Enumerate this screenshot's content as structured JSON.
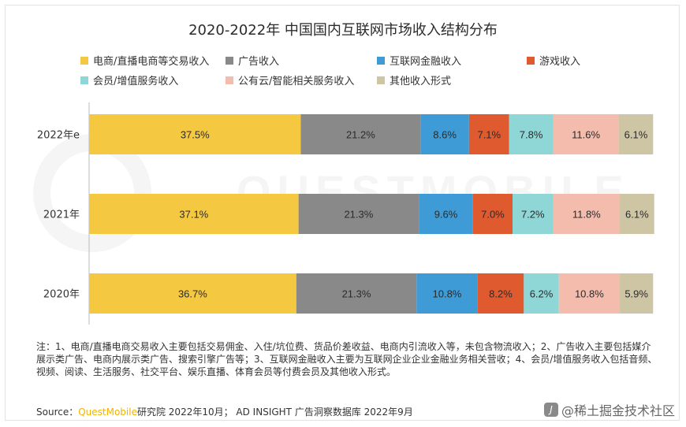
{
  "title": "2020-2022年 中国国内互联网市场收入结构分布",
  "watermark_bg": "QUESTMOBILE",
  "chart_data": {
    "type": "bar",
    "orientation": "horizontal",
    "stacked": true,
    "percent": true,
    "categories": [
      "2022年e",
      "2021年",
      "2020年"
    ],
    "series": [
      {
        "name": "电商/直播电商等交易收入",
        "color": "#F5C842",
        "values": [
          37.5,
          37.1,
          36.7
        ],
        "labels": [
          "37.5%",
          "37.1%",
          "36.7%"
        ]
      },
      {
        "name": "广告收入",
        "color": "#898989",
        "values": [
          21.2,
          21.3,
          21.3
        ],
        "labels": [
          "21.2%",
          "21.3%",
          "21.3%"
        ]
      },
      {
        "name": "互联网金融收入",
        "color": "#3E9BD6",
        "values": [
          8.6,
          9.6,
          10.8
        ],
        "labels": [
          "8.6%",
          "9.6%",
          "10.8%"
        ]
      },
      {
        "name": "游戏收入",
        "color": "#DF5A2E",
        "values": [
          7.1,
          7.0,
          8.2
        ],
        "labels": [
          "7.1%",
          "7.0%",
          "8.2%"
        ]
      },
      {
        "name": "会员/增值服务收入",
        "color": "#8FD6D7",
        "values": [
          7.8,
          7.2,
          6.2
        ],
        "labels": [
          "7.8%",
          "7.2%",
          "6.2%"
        ]
      },
      {
        "name": "公有云/智能相关服务收入",
        "color": "#F4BCAD",
        "values": [
          11.6,
          11.8,
          10.8
        ],
        "labels": [
          "11.6%",
          "11.8%",
          "10.8%"
        ]
      },
      {
        "name": "其他收入形式",
        "color": "#CEC5A4",
        "values": [
          6.1,
          6.1,
          5.9
        ],
        "labels": [
          "6.1%",
          "6.1%",
          "5.9%"
        ]
      }
    ],
    "xlim": [
      0,
      100
    ],
    "grid": false,
    "legend": "top"
  },
  "notes": "注：1、电商/直播电商交易收入主要包括交易佣金、入住/坑位费、货品价差收益、电商内引流收入等，未包含物流收入；2、广告收入主要包括媒介展示类广告、电商内展示类广告、搜索引擎广告等；3、互联网金融收入主要为互联网企业企业金融业务相关营收；4、会员/增值服务收入包括音频、视频、阅读、生活服务、社交平台、娱乐直播、体育会员等付费会员及其他收入形式。",
  "source": {
    "prefix": "Source：",
    "brand": "QuestMobile",
    "text": "研究院 2022年10月； AD INSIGHT 广告洞察数据库 2022年9月"
  },
  "site_watermark": {
    "badge": "J",
    "text": "@稀土掘金技术社区"
  }
}
